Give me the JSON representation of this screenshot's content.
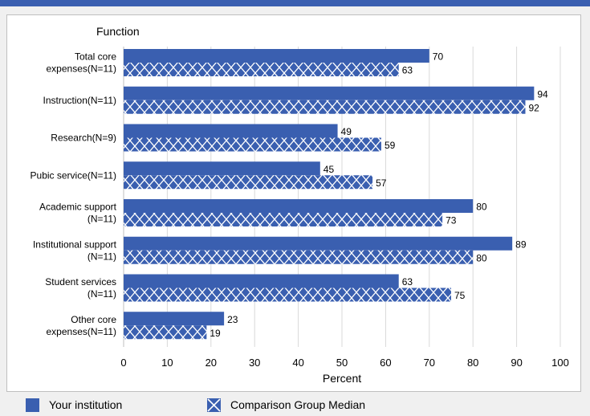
{
  "chart_data": {
    "type": "bar",
    "orientation": "horizontal",
    "y_axis_title": "Function",
    "xlabel": "Percent",
    "xlim": [
      0,
      100
    ],
    "x_ticks": [
      0,
      10,
      20,
      30,
      40,
      50,
      60,
      70,
      80,
      90,
      100
    ],
    "grid": true,
    "legend_position": "bottom",
    "categories": [
      [
        "Total core",
        "expenses(N=11)"
      ],
      [
        "Instruction(N=11)"
      ],
      [
        "Research(N=9)"
      ],
      [
        "Pubic service(N=11)"
      ],
      [
        "Academic support",
        "(N=11)"
      ],
      [
        "Institutional support",
        "(N=11)"
      ],
      [
        "Student services",
        "(N=11)"
      ],
      [
        "Other core",
        "expenses(N=11)"
      ]
    ],
    "series": [
      {
        "name": "Your institution",
        "values": [
          70,
          94,
          49,
          45,
          80,
          89,
          63,
          23
        ],
        "color": "#3a5fb0",
        "pattern": "solid"
      },
      {
        "name": "Comparison Group Median",
        "values": [
          63,
          92,
          59,
          57,
          73,
          80,
          75,
          19
        ],
        "color": "#3a5fb0",
        "pattern": "crosshatch"
      }
    ]
  }
}
